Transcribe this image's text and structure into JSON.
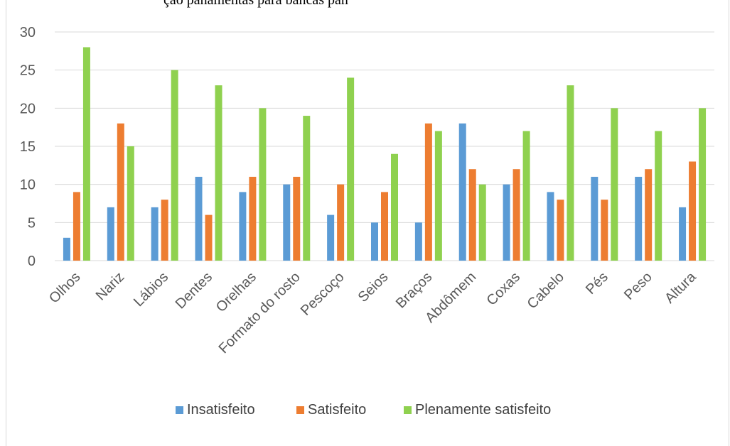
{
  "colors": {
    "Insatisfeito": "#5b9bd5",
    "Satisfeito": "#ed7d31",
    "Plenamente satisfeito": "#8fd14f",
    "grid": "#d9d9d9"
  },
  "cutoff_title": "ção panamentas para bancas pan",
  "chart_data": {
    "type": "bar",
    "title": "",
    "xlabel": "",
    "ylabel": "",
    "ylim": [
      0,
      30
    ],
    "yticks": [
      0,
      5,
      10,
      15,
      20,
      25,
      30
    ],
    "grid": true,
    "legend_position": "bottom",
    "categories": [
      "Olhos",
      "Nariz",
      "Lábios",
      "Dentes",
      "Orelhas",
      "Formato do rosto",
      "Pescoço",
      "Seios",
      "Braços",
      "Abdômem",
      "Coxas",
      "Cabelo",
      "Pés",
      "Peso",
      "Altura"
    ],
    "series": [
      {
        "name": "Insatisfeito",
        "values": [
          3,
          7,
          7,
          11,
          9,
          10,
          6,
          5,
          5,
          18,
          10,
          9,
          11,
          11,
          7
        ]
      },
      {
        "name": "Satisfeito",
        "values": [
          9,
          18,
          8,
          6,
          11,
          11,
          10,
          9,
          18,
          12,
          12,
          8,
          8,
          12,
          13
        ]
      },
      {
        "name": "Plenamente satisfeito",
        "values": [
          28,
          15,
          25,
          23,
          20,
          19,
          24,
          14,
          17,
          10,
          17,
          23,
          20,
          17,
          20
        ]
      }
    ]
  }
}
